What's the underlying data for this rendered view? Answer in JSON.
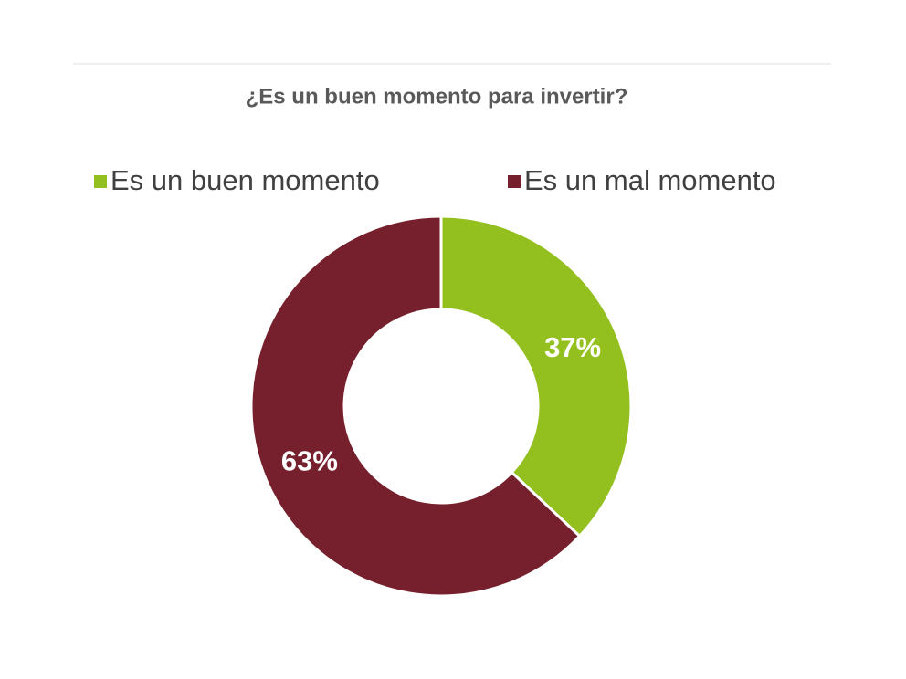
{
  "chart_data": {
    "type": "donut",
    "title": "¿Es un buen momento para invertir?",
    "categories": [
      "Es un buen momento",
      "Es un mal momento"
    ],
    "values": [
      37,
      63
    ],
    "value_labels": [
      "37%",
      "63%"
    ],
    "colors": [
      "#93c01f",
      "#76202d"
    ]
  }
}
